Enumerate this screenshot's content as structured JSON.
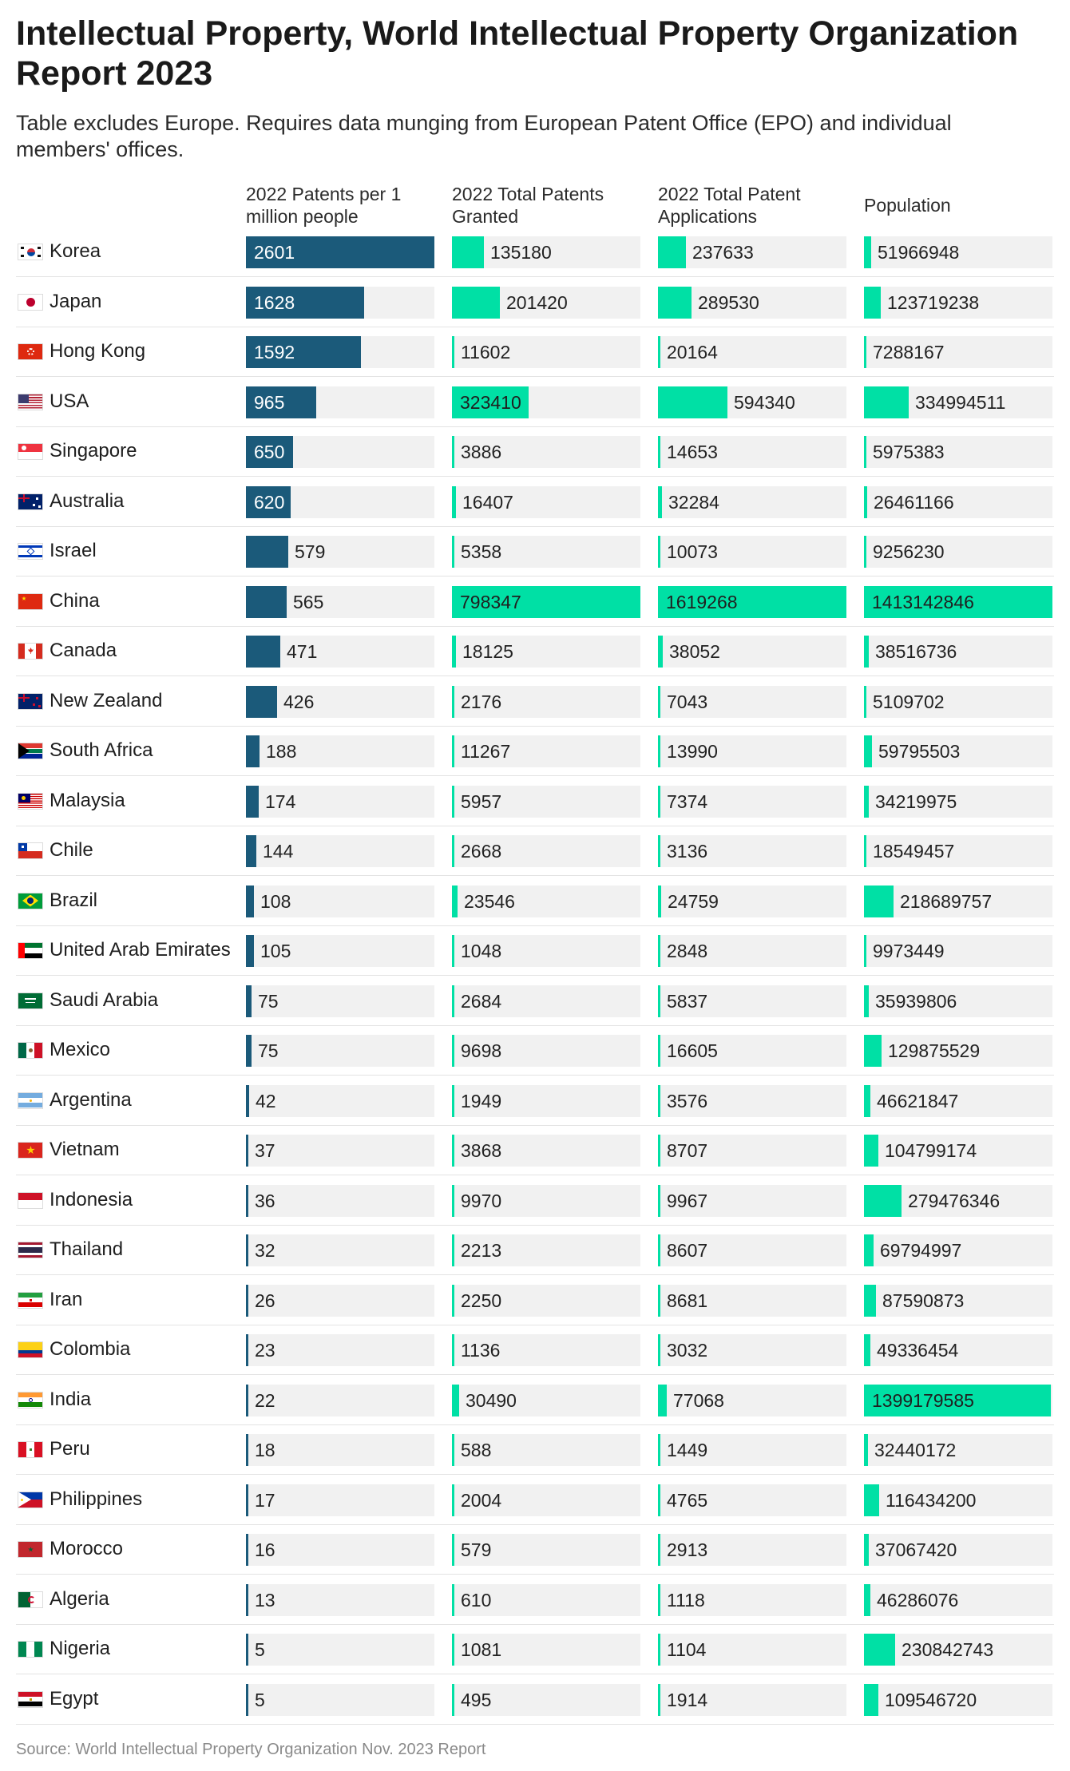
{
  "title": "Intellectual Property, World Intellectual Property Organization Report 2023",
  "subtitle": "Table excludes Europe. Requires data munging from European Patent Office (EPO) and individual members' offices.",
  "source": "Source: World Intellectual Property Organization Nov. 2023 Report",
  "colors": {
    "per_million_bar": "#1b5a7a",
    "other_bars": "#00e0a5",
    "cell_background": "#f1f1f1"
  },
  "chart_data": {
    "type": "table",
    "columns": [
      {
        "key": "per_million",
        "label": "2022 Patents per 1 million people",
        "max": 2601
      },
      {
        "key": "granted",
        "label": "2022 Total Patents Granted",
        "max": 798347
      },
      {
        "key": "applications",
        "label": "2022 Total Patent Applications",
        "max": 1619268
      },
      {
        "key": "population",
        "label": "Population",
        "max": 1413142846
      }
    ],
    "rows": [
      {
        "country": "Korea",
        "flag": "korea-flag",
        "per_million": 2601,
        "granted": 135180,
        "applications": 237633,
        "population": 51966948
      },
      {
        "country": "Japan",
        "flag": "japan-flag",
        "per_million": 1628,
        "granted": 201420,
        "applications": 289530,
        "population": 123719238
      },
      {
        "country": "Hong Kong",
        "flag": "hong-kong-flag",
        "per_million": 1592,
        "granted": 11602,
        "applications": 20164,
        "population": 7288167
      },
      {
        "country": "USA",
        "flag": "usa-flag",
        "per_million": 965,
        "granted": 323410,
        "applications": 594340,
        "population": 334994511
      },
      {
        "country": "Singapore",
        "flag": "singapore-flag",
        "per_million": 650,
        "granted": 3886,
        "applications": 14653,
        "population": 5975383
      },
      {
        "country": "Australia",
        "flag": "australia-flag",
        "per_million": 620,
        "granted": 16407,
        "applications": 32284,
        "population": 26461166
      },
      {
        "country": "Israel",
        "flag": "israel-flag",
        "per_million": 579,
        "granted": 5358,
        "applications": 10073,
        "population": 9256230
      },
      {
        "country": "China",
        "flag": "china-flag",
        "per_million": 565,
        "granted": 798347,
        "applications": 1619268,
        "population": 1413142846
      },
      {
        "country": "Canada",
        "flag": "canada-flag",
        "per_million": 471,
        "granted": 18125,
        "applications": 38052,
        "population": 38516736
      },
      {
        "country": "New Zealand",
        "flag": "new-zealand-flag",
        "per_million": 426,
        "granted": 2176,
        "applications": 7043,
        "population": 5109702
      },
      {
        "country": "South Africa",
        "flag": "south-africa-flag",
        "per_million": 188,
        "granted": 11267,
        "applications": 13990,
        "population": 59795503
      },
      {
        "country": "Malaysia",
        "flag": "malaysia-flag",
        "per_million": 174,
        "granted": 5957,
        "applications": 7374,
        "population": 34219975
      },
      {
        "country": "Chile",
        "flag": "chile-flag",
        "per_million": 144,
        "granted": 2668,
        "applications": 3136,
        "population": 18549457
      },
      {
        "country": "Brazil",
        "flag": "brazil-flag",
        "per_million": 108,
        "granted": 23546,
        "applications": 24759,
        "population": 218689757
      },
      {
        "country": "United Arab Emirates",
        "flag": "uae-flag",
        "per_million": 105,
        "granted": 1048,
        "applications": 2848,
        "population": 9973449
      },
      {
        "country": "Saudi Arabia",
        "flag": "saudi-arabia-flag",
        "per_million": 75,
        "granted": 2684,
        "applications": 5837,
        "population": 35939806
      },
      {
        "country": "Mexico",
        "flag": "mexico-flag",
        "per_million": 75,
        "granted": 9698,
        "applications": 16605,
        "population": 129875529
      },
      {
        "country": "Argentina",
        "flag": "argentina-flag",
        "per_million": 42,
        "granted": 1949,
        "applications": 3576,
        "population": 46621847
      },
      {
        "country": "Vietnam",
        "flag": "vietnam-flag",
        "per_million": 37,
        "granted": 3868,
        "applications": 8707,
        "population": 104799174
      },
      {
        "country": "Indonesia",
        "flag": "indonesia-flag",
        "per_million": 36,
        "granted": 9970,
        "applications": 9967,
        "population": 279476346
      },
      {
        "country": "Thailand",
        "flag": "thailand-flag",
        "per_million": 32,
        "granted": 2213,
        "applications": 8607,
        "population": 69794997
      },
      {
        "country": "Iran",
        "flag": "iran-flag",
        "per_million": 26,
        "granted": 2250,
        "applications": 8681,
        "population": 87590873
      },
      {
        "country": "Colombia",
        "flag": "colombia-flag",
        "per_million": 23,
        "granted": 1136,
        "applications": 3032,
        "population": 49336454
      },
      {
        "country": "India",
        "flag": "india-flag",
        "per_million": 22,
        "granted": 30490,
        "applications": 77068,
        "population": 1399179585
      },
      {
        "country": "Peru",
        "flag": "peru-flag",
        "per_million": 18,
        "granted": 588,
        "applications": 1449,
        "population": 32440172
      },
      {
        "country": "Philippines",
        "flag": "philippines-flag",
        "per_million": 17,
        "granted": 2004,
        "applications": 4765,
        "population": 116434200
      },
      {
        "country": "Morocco",
        "flag": "morocco-flag",
        "per_million": 16,
        "granted": 579,
        "applications": 2913,
        "population": 37067420
      },
      {
        "country": "Algeria",
        "flag": "algeria-flag",
        "per_million": 13,
        "granted": 610,
        "applications": 1118,
        "population": 46286076
      },
      {
        "country": "Nigeria",
        "flag": "nigeria-flag",
        "per_million": 5,
        "granted": 1081,
        "applications": 1104,
        "population": 230842743
      },
      {
        "country": "Egypt",
        "flag": "egypt-flag",
        "per_million": 5,
        "granted": 495,
        "applications": 1914,
        "population": 109546720
      }
    ]
  }
}
